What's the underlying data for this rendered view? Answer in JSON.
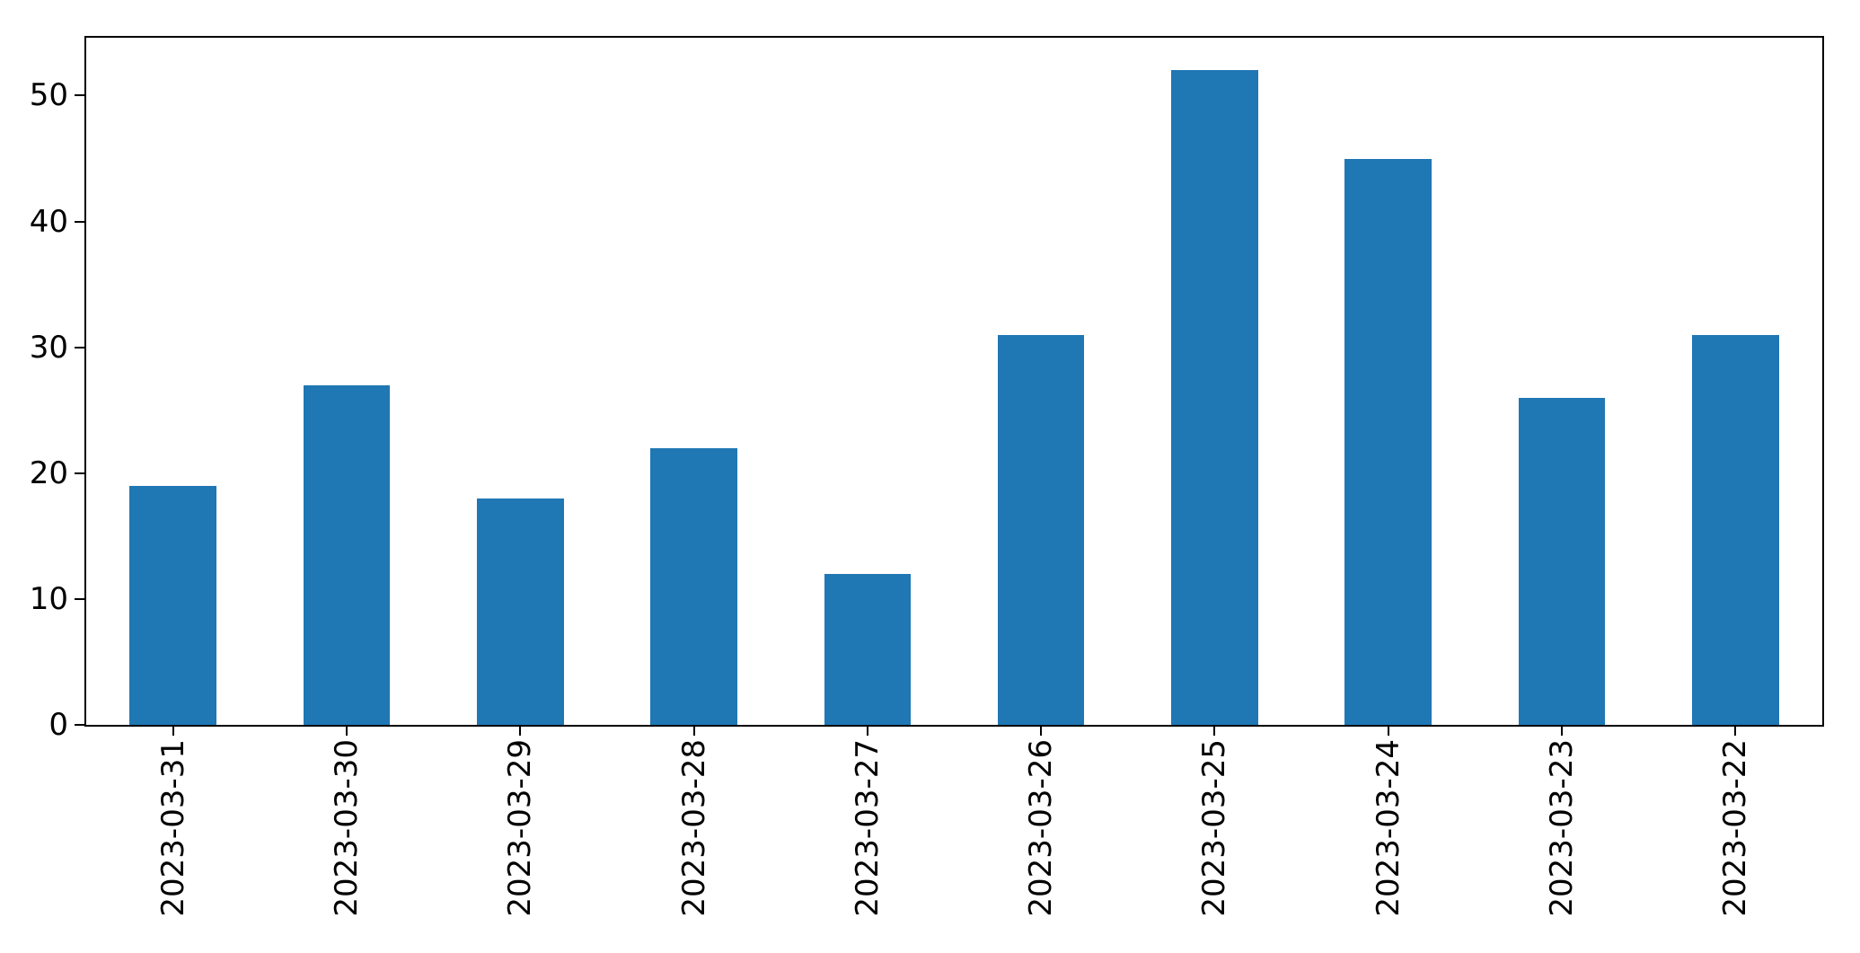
{
  "figure": {
    "background": "#ffffff",
    "spine_color": "#000000",
    "text_color": "#000000"
  },
  "chart_data": {
    "type": "bar",
    "categories": [
      "2023-03-31",
      "2023-03-30",
      "2023-03-29",
      "2023-03-28",
      "2023-03-27",
      "2023-03-26",
      "2023-03-25",
      "2023-03-24",
      "2023-03-23",
      "2023-03-22"
    ],
    "values": [
      19,
      27,
      18,
      22,
      12,
      31,
      52,
      45,
      26,
      31
    ],
    "title": "",
    "xlabel": "",
    "ylabel": "",
    "ylim": [
      0,
      54.6
    ],
    "yticks": [
      0,
      10,
      20,
      30,
      40,
      50
    ],
    "x_tick_rotation_deg": 90,
    "bar_color": "#1f77b4",
    "bar_width_fraction": 0.5,
    "grid": false,
    "legend": null,
    "frame": "box"
  }
}
